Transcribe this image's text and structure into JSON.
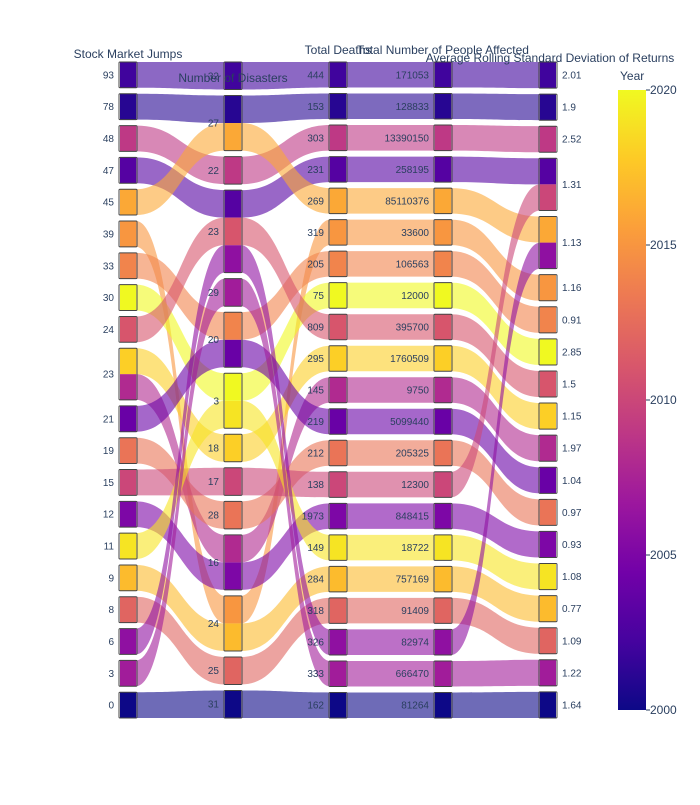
{
  "chart_data": {
    "type": "parallel_categories",
    "color_variable": "Year",
    "colorscale": "plasma",
    "color_range": [
      2000,
      2020
    ],
    "colorbar": {
      "title": "Year",
      "ticks": [
        2000,
        2005,
        2010,
        2015,
        2020
      ]
    },
    "dimensions": [
      {
        "label": "Stock Market Jumps",
        "categories": [
          "93",
          "78",
          "48",
          "47",
          "45",
          "39",
          "33",
          "30",
          "24",
          "23",
          "21",
          "19",
          "15",
          "12",
          "11",
          "9",
          "8",
          "6",
          "3",
          "0"
        ]
      },
      {
        "label": "Number of Disasters",
        "categories": [
          "32",
          "27",
          "22",
          "23",
          "29",
          "20",
          "3",
          "18",
          "17",
          "28",
          "16",
          "24",
          "25",
          "31"
        ]
      },
      {
        "label": "Total Deaths",
        "categories": [
          "444",
          "153",
          "303",
          "231",
          "269",
          "319",
          "205",
          "75",
          "809",
          "295",
          "145",
          "219",
          "212",
          "138",
          "1973",
          "149",
          "284",
          "318",
          "326",
          "333",
          "162"
        ]
      },
      {
        "label": "Total Number of People Affected",
        "categories": [
          "171053",
          "128833",
          "13390150",
          "258195",
          "85110376",
          "33600",
          "106563",
          "12000",
          "395700",
          "1760509",
          "9750",
          "5099440",
          "205325",
          "12300",
          "848415",
          "18722",
          "757169",
          "91409",
          "82974",
          "666470",
          "81264"
        ]
      },
      {
        "label": "Average Rolling Standard Deviation of Returns",
        "categories": [
          "2.01",
          "1.9",
          "2.52",
          "1.31",
          "1.13",
          "1.16",
          "0.91",
          "2.85",
          "1.5",
          "1.15",
          "1.97",
          "1.04",
          "0.97",
          "0.93",
          "1.08",
          "0.77",
          "1.09",
          "1.22",
          "1.64"
        ]
      }
    ],
    "records": [
      {
        "year": 2000,
        "values": [
          "0",
          "31",
          "162",
          "81264",
          "1.64"
        ]
      },
      {
        "year": 2001,
        "values": [
          "78",
          "27",
          "153",
          "128833",
          "1.9"
        ]
      },
      {
        "year": 2002,
        "values": [
          "93",
          "32",
          "444",
          "171053",
          "2.01"
        ]
      },
      {
        "year": 2003,
        "values": [
          "47",
          "23",
          "231",
          "258195",
          "1.31"
        ]
      },
      {
        "year": 2004,
        "values": [
          "21",
          "20",
          "219",
          "5099440",
          "1.04"
        ]
      },
      {
        "year": 2005,
        "values": [
          "12",
          "16",
          "1973",
          "848415",
          "0.93"
        ]
      },
      {
        "year": 2006,
        "values": [
          "6",
          "23",
          "326",
          "82974",
          "1.13"
        ]
      },
      {
        "year": 2007,
        "values": [
          "3",
          "29",
          "333",
          "666470",
          "1.22"
        ]
      },
      {
        "year": 2008,
        "values": [
          "23",
          "16",
          "145",
          "9750",
          "1.97"
        ]
      },
      {
        "year": 2009,
        "values": [
          "48",
          "22",
          "303",
          "13390150",
          "2.52"
        ]
      },
      {
        "year": 2010,
        "values": [
          "15",
          "17",
          "138",
          "12300",
          "1.31"
        ]
      },
      {
        "year": 2011,
        "values": [
          "24",
          "23",
          "809",
          "395700",
          "1.5"
        ]
      },
      {
        "year": 2012,
        "values": [
          "8",
          "25",
          "318",
          "91409",
          "1.09"
        ]
      },
      {
        "year": 2013,
        "values": [
          "19",
          "28",
          "212",
          "205325",
          "0.97"
        ]
      },
      {
        "year": 2014,
        "values": [
          "33",
          "20",
          "205",
          "106563",
          "0.91"
        ]
      },
      {
        "year": 2015,
        "values": [
          "39",
          "24",
          "319",
          "33600",
          "1.16"
        ]
      },
      {
        "year": 2016,
        "values": [
          "45",
          "27",
          "269",
          "85110376",
          "1.13"
        ]
      },
      {
        "year": 2017,
        "values": [
          "9",
          "24",
          "284",
          "757169",
          "0.77"
        ]
      },
      {
        "year": 2018,
        "values": [
          "23",
          "18",
          "295",
          "1760509",
          "1.15"
        ]
      },
      {
        "year": 2019,
        "values": [
          "11",
          "3",
          "149",
          "18722",
          "1.08"
        ]
      },
      {
        "year": 2020,
        "values": [
          "30",
          "3",
          "75",
          "12000",
          "2.85"
        ]
      }
    ]
  }
}
